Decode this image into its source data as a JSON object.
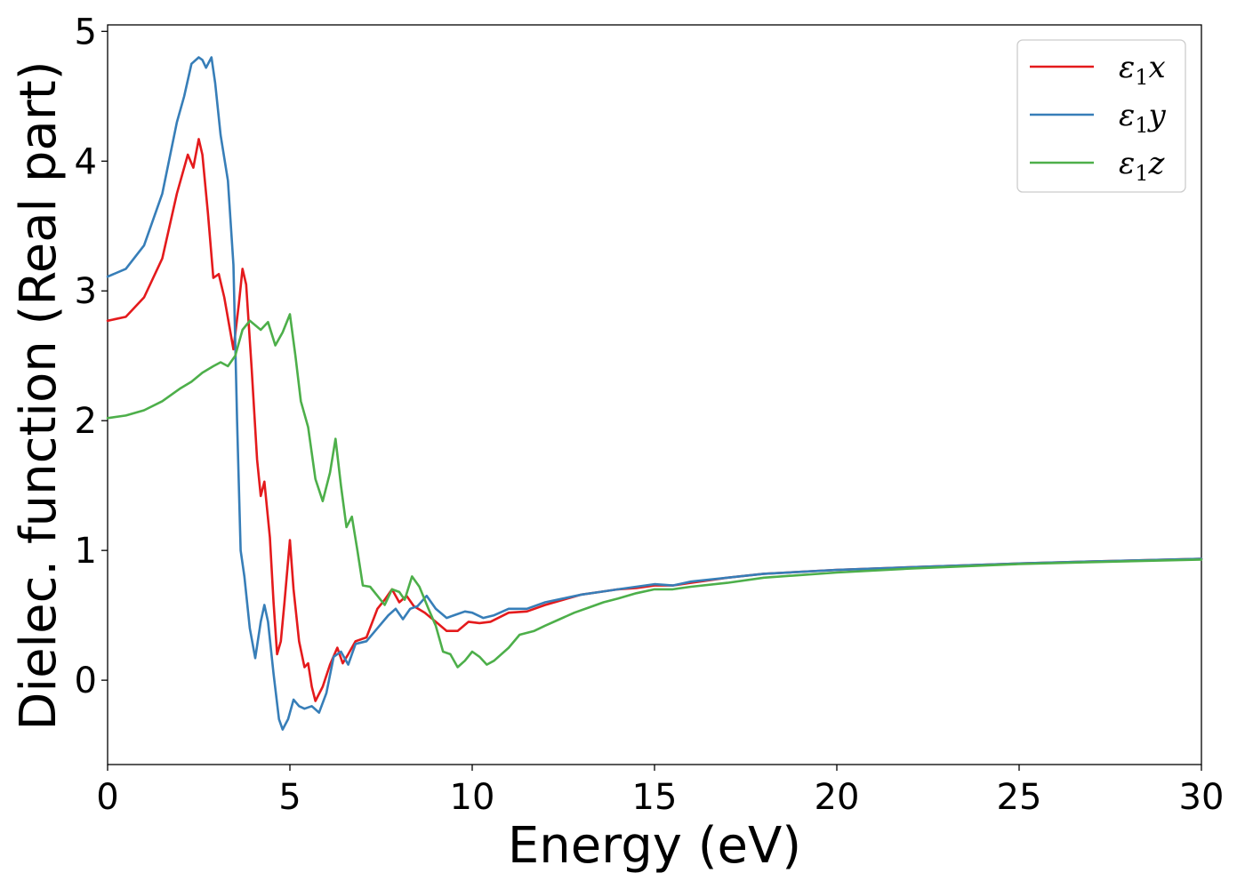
{
  "chart_data": {
    "type": "line",
    "xlabel": "Energy (eV)",
    "ylabel": "Dielec. function (Real part)",
    "xlim": [
      0,
      30
    ],
    "ylim": [
      -0.65,
      5.05
    ],
    "xticks": [
      0,
      5,
      10,
      15,
      20,
      25,
      30
    ],
    "yticks": [
      0,
      1,
      2,
      3,
      4,
      5
    ],
    "grid": false,
    "legend_position": "top-right",
    "series": [
      {
        "name": "ε1x",
        "label_main": "ε",
        "label_sub": "1",
        "label_axis": "x",
        "color": "#e41a1c",
        "points": [
          [
            0,
            2.77
          ],
          [
            0.5,
            2.8
          ],
          [
            1.0,
            2.95
          ],
          [
            1.5,
            3.25
          ],
          [
            1.9,
            3.75
          ],
          [
            2.2,
            4.05
          ],
          [
            2.35,
            3.95
          ],
          [
            2.5,
            4.17
          ],
          [
            2.6,
            4.05
          ],
          [
            2.75,
            3.6
          ],
          [
            2.9,
            3.1
          ],
          [
            3.05,
            3.13
          ],
          [
            3.2,
            2.95
          ],
          [
            3.45,
            2.55
          ],
          [
            3.6,
            2.9
          ],
          [
            3.7,
            3.17
          ],
          [
            3.8,
            3.05
          ],
          [
            3.95,
            2.4
          ],
          [
            4.1,
            1.7
          ],
          [
            4.2,
            1.42
          ],
          [
            4.3,
            1.53
          ],
          [
            4.45,
            1.1
          ],
          [
            4.55,
            0.6
          ],
          [
            4.65,
            0.2
          ],
          [
            4.75,
            0.3
          ],
          [
            4.85,
            0.6
          ],
          [
            5.0,
            1.08
          ],
          [
            5.1,
            0.7
          ],
          [
            5.25,
            0.3
          ],
          [
            5.4,
            0.1
          ],
          [
            5.5,
            0.13
          ],
          [
            5.6,
            -0.05
          ],
          [
            5.7,
            -0.16
          ],
          [
            5.9,
            -0.05
          ],
          [
            6.1,
            0.12
          ],
          [
            6.3,
            0.25
          ],
          [
            6.45,
            0.13
          ],
          [
            6.6,
            0.2
          ],
          [
            6.8,
            0.3
          ],
          [
            7.1,
            0.33
          ],
          [
            7.4,
            0.55
          ],
          [
            7.6,
            0.62
          ],
          [
            7.8,
            0.7
          ],
          [
            8.0,
            0.6
          ],
          [
            8.2,
            0.65
          ],
          [
            8.4,
            0.57
          ],
          [
            8.7,
            0.52
          ],
          [
            9.0,
            0.45
          ],
          [
            9.3,
            0.38
          ],
          [
            9.6,
            0.38
          ],
          [
            9.9,
            0.45
          ],
          [
            10.2,
            0.44
          ],
          [
            10.5,
            0.45
          ],
          [
            11.0,
            0.52
          ],
          [
            11.5,
            0.53
          ],
          [
            12.0,
            0.58
          ],
          [
            12.5,
            0.62
          ],
          [
            13.0,
            0.66
          ],
          [
            13.5,
            0.68
          ],
          [
            14.0,
            0.7
          ],
          [
            14.5,
            0.71
          ],
          [
            15.0,
            0.73
          ],
          [
            15.5,
            0.73
          ],
          [
            16.0,
            0.75
          ],
          [
            17.0,
            0.79
          ],
          [
            18.0,
            0.82
          ],
          [
            20.0,
            0.85
          ],
          [
            22.0,
            0.87
          ],
          [
            25.0,
            0.9
          ],
          [
            27.0,
            0.915
          ],
          [
            30.0,
            0.935
          ]
        ]
      },
      {
        "name": "ε1y",
        "label_main": "ε",
        "label_sub": "1",
        "label_axis": "y",
        "color": "#377eb8",
        "points": [
          [
            0,
            3.11
          ],
          [
            0.5,
            3.17
          ],
          [
            1.0,
            3.35
          ],
          [
            1.5,
            3.75
          ],
          [
            1.9,
            4.3
          ],
          [
            2.1,
            4.5
          ],
          [
            2.3,
            4.75
          ],
          [
            2.5,
            4.8
          ],
          [
            2.6,
            4.78
          ],
          [
            2.7,
            4.72
          ],
          [
            2.85,
            4.8
          ],
          [
            2.95,
            4.6
          ],
          [
            3.1,
            4.2
          ],
          [
            3.3,
            3.85
          ],
          [
            3.45,
            3.2
          ],
          [
            3.55,
            2.0
          ],
          [
            3.65,
            1.0
          ],
          [
            3.75,
            0.8
          ],
          [
            3.9,
            0.4
          ],
          [
            4.05,
            0.17
          ],
          [
            4.2,
            0.45
          ],
          [
            4.3,
            0.58
          ],
          [
            4.4,
            0.45
          ],
          [
            4.55,
            0.05
          ],
          [
            4.7,
            -0.3
          ],
          [
            4.8,
            -0.38
          ],
          [
            4.95,
            -0.3
          ],
          [
            5.1,
            -0.15
          ],
          [
            5.25,
            -0.2
          ],
          [
            5.4,
            -0.22
          ],
          [
            5.6,
            -0.2
          ],
          [
            5.8,
            -0.25
          ],
          [
            6.0,
            -0.1
          ],
          [
            6.2,
            0.18
          ],
          [
            6.4,
            0.22
          ],
          [
            6.6,
            0.12
          ],
          [
            6.8,
            0.28
          ],
          [
            7.1,
            0.3
          ],
          [
            7.4,
            0.4
          ],
          [
            7.7,
            0.5
          ],
          [
            7.9,
            0.55
          ],
          [
            8.1,
            0.47
          ],
          [
            8.3,
            0.55
          ],
          [
            8.5,
            0.57
          ],
          [
            8.75,
            0.65
          ],
          [
            9.0,
            0.55
          ],
          [
            9.3,
            0.48
          ],
          [
            9.5,
            0.5
          ],
          [
            9.8,
            0.53
          ],
          [
            10.0,
            0.52
          ],
          [
            10.3,
            0.48
          ],
          [
            10.6,
            0.5
          ],
          [
            11.0,
            0.55
          ],
          [
            11.5,
            0.55
          ],
          [
            12.0,
            0.6
          ],
          [
            12.5,
            0.63
          ],
          [
            13.0,
            0.66
          ],
          [
            13.5,
            0.68
          ],
          [
            14.0,
            0.7
          ],
          [
            14.5,
            0.72
          ],
          [
            15.0,
            0.74
          ],
          [
            15.5,
            0.73
          ],
          [
            16.0,
            0.76
          ],
          [
            17.0,
            0.79
          ],
          [
            18.0,
            0.82
          ],
          [
            20.0,
            0.85
          ],
          [
            22.0,
            0.87
          ],
          [
            25.0,
            0.9
          ],
          [
            27.0,
            0.915
          ],
          [
            30.0,
            0.935
          ]
        ]
      },
      {
        "name": "ε1z",
        "label_main": "ε",
        "label_sub": "1",
        "label_axis": "z",
        "color": "#4daf4a",
        "points": [
          [
            0,
            2.02
          ],
          [
            0.5,
            2.04
          ],
          [
            1.0,
            2.08
          ],
          [
            1.5,
            2.15
          ],
          [
            2.0,
            2.25
          ],
          [
            2.3,
            2.3
          ],
          [
            2.6,
            2.37
          ],
          [
            2.9,
            2.42
          ],
          [
            3.1,
            2.45
          ],
          [
            3.3,
            2.42
          ],
          [
            3.5,
            2.5
          ],
          [
            3.7,
            2.7
          ],
          [
            3.9,
            2.77
          ],
          [
            4.2,
            2.7
          ],
          [
            4.4,
            2.76
          ],
          [
            4.6,
            2.58
          ],
          [
            4.8,
            2.68
          ],
          [
            5.0,
            2.82
          ],
          [
            5.15,
            2.5
          ],
          [
            5.3,
            2.15
          ],
          [
            5.5,
            1.95
          ],
          [
            5.7,
            1.55
          ],
          [
            5.9,
            1.38
          ],
          [
            6.1,
            1.6
          ],
          [
            6.25,
            1.86
          ],
          [
            6.4,
            1.5
          ],
          [
            6.55,
            1.18
          ],
          [
            6.7,
            1.26
          ],
          [
            6.85,
            1.0
          ],
          [
            7.0,
            0.73
          ],
          [
            7.2,
            0.72
          ],
          [
            7.4,
            0.65
          ],
          [
            7.6,
            0.58
          ],
          [
            7.8,
            0.7
          ],
          [
            8.0,
            0.68
          ],
          [
            8.15,
            0.62
          ],
          [
            8.35,
            0.8
          ],
          [
            8.55,
            0.72
          ],
          [
            8.8,
            0.55
          ],
          [
            9.0,
            0.42
          ],
          [
            9.2,
            0.22
          ],
          [
            9.4,
            0.2
          ],
          [
            9.6,
            0.1
          ],
          [
            9.8,
            0.15
          ],
          [
            10.0,
            0.22
          ],
          [
            10.2,
            0.18
          ],
          [
            10.4,
            0.12
          ],
          [
            10.6,
            0.15
          ],
          [
            11.0,
            0.25
          ],
          [
            11.3,
            0.35
          ],
          [
            11.7,
            0.38
          ],
          [
            12.0,
            0.42
          ],
          [
            12.4,
            0.47
          ],
          [
            12.8,
            0.52
          ],
          [
            13.2,
            0.56
          ],
          [
            13.6,
            0.6
          ],
          [
            14.0,
            0.63
          ],
          [
            14.5,
            0.67
          ],
          [
            15.0,
            0.7
          ],
          [
            15.5,
            0.7
          ],
          [
            16.0,
            0.72
          ],
          [
            17.0,
            0.75
          ],
          [
            18.0,
            0.79
          ],
          [
            20.0,
            0.83
          ],
          [
            22.0,
            0.86
          ],
          [
            25.0,
            0.895
          ],
          [
            27.0,
            0.91
          ],
          [
            30.0,
            0.93
          ]
        ]
      }
    ]
  }
}
